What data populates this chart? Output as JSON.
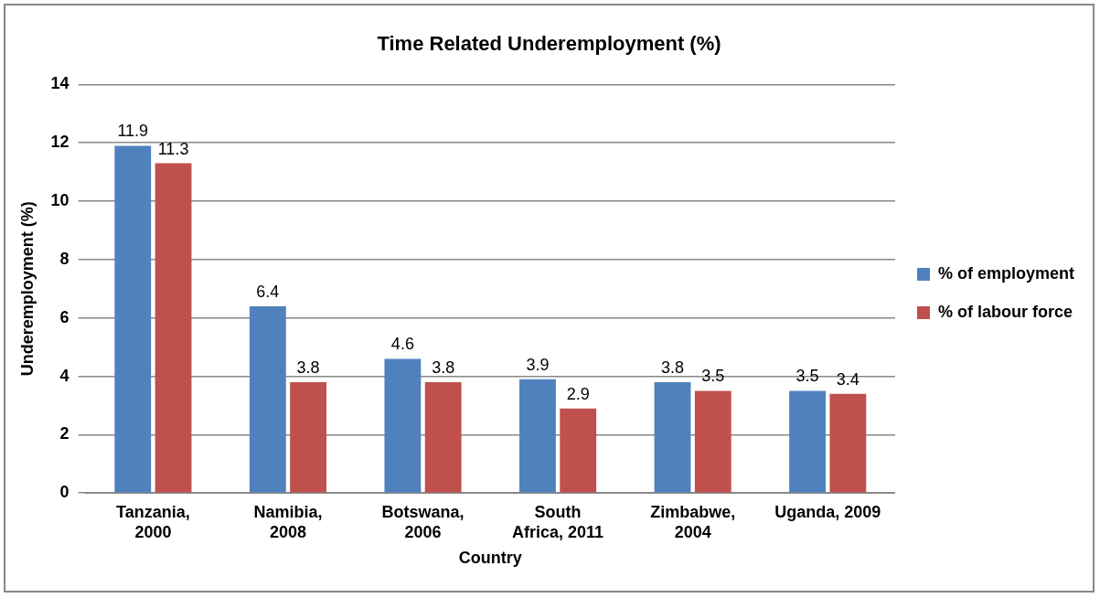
{
  "chart_data": {
    "type": "bar",
    "title": "Time Related Underemployment (%)",
    "xlabel": "Country",
    "ylabel": "Underemployment (%)",
    "categories": [
      "Tanzania, 2000",
      "Namibia, 2008",
      "Botswana, 2006",
      "South Africa, 2011",
      "Zimbabwe, 2004",
      "Uganda, 2009"
    ],
    "series": [
      {
        "name": "% of employment",
        "color": "#4f81bd",
        "values": [
          11.9,
          6.4,
          4.6,
          3.9,
          3.8,
          3.5
        ]
      },
      {
        "name": "% of labour force",
        "color": "#c0504d",
        "values": [
          11.3,
          3.8,
          3.8,
          2.9,
          3.5,
          3.4
        ]
      }
    ],
    "ylim": [
      0,
      14
    ],
    "yticks": [
      0,
      2,
      4,
      6,
      8,
      10,
      12,
      14
    ],
    "grid": "y",
    "legend": "right",
    "data_labels": true
  }
}
